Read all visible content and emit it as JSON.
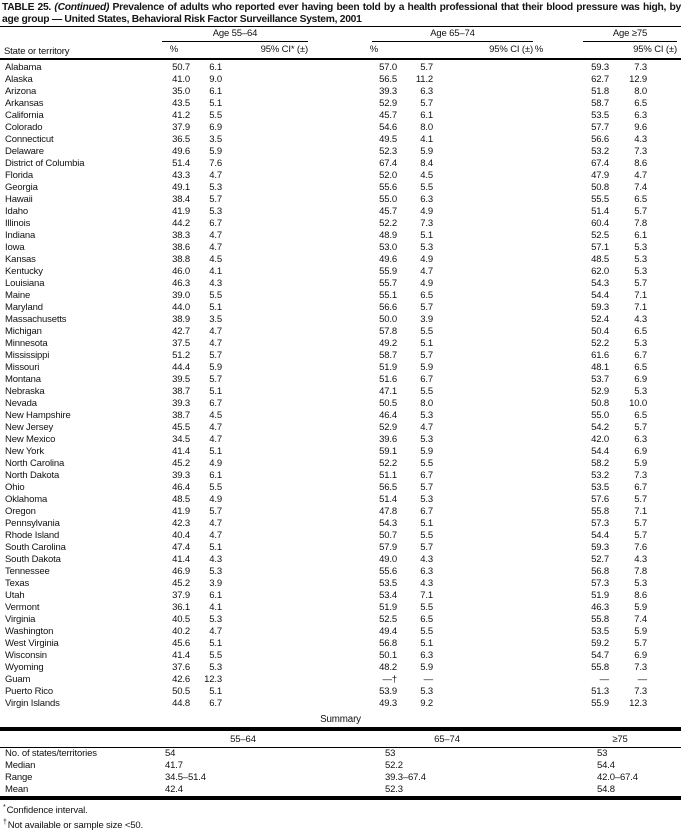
{
  "title": {
    "label": "TABLE 25.",
    "continued": "(Continued)",
    "text": "Prevalence of adults who reported ever having been told by a health professional that their blood pressure was high, by age group — United States, Behavioral Risk Factor Surveillance System, 2001"
  },
  "header": {
    "row_header": "State or territory",
    "groups": [
      {
        "label": "Age 55–64",
        "pct": "%",
        "ci": "95% CI* (±)"
      },
      {
        "label": "Age 65–74",
        "pct": "%",
        "ci": "95% CI (±)"
      },
      {
        "label": "Age ≥75",
        "pct": "%",
        "ci": "95% CI (±)"
      }
    ]
  },
  "rows": [
    {
      "state": "Alabama",
      "v": [
        "50.7",
        "6.1",
        "57.0",
        "5.7",
        "59.3",
        "7.3"
      ]
    },
    {
      "state": "Alaska",
      "v": [
        "41.0",
        "9.0",
        "56.5",
        "11.2",
        "62.7",
        "12.9"
      ]
    },
    {
      "state": "Arizona",
      "v": [
        "35.0",
        "6.1",
        "39.3",
        "6.3",
        "51.8",
        "8.0"
      ]
    },
    {
      "state": "Arkansas",
      "v": [
        "43.5",
        "5.1",
        "52.9",
        "5.7",
        "58.7",
        "6.5"
      ]
    },
    {
      "state": "California",
      "v": [
        "41.2",
        "5.5",
        "45.7",
        "6.1",
        "53.5",
        "6.3"
      ]
    },
    {
      "state": "Colorado",
      "v": [
        "37.9",
        "6.9",
        "54.6",
        "8.0",
        "57.7",
        "9.6"
      ]
    },
    {
      "state": "Connecticut",
      "v": [
        "36.5",
        "3.5",
        "49.5",
        "4.1",
        "56.6",
        "4.3"
      ]
    },
    {
      "state": "Delaware",
      "v": [
        "49.6",
        "5.9",
        "52.3",
        "5.9",
        "53.2",
        "7.3"
      ]
    },
    {
      "state": "District of Columbia",
      "v": [
        "51.4",
        "7.6",
        "67.4",
        "8.4",
        "67.4",
        "8.6"
      ]
    },
    {
      "state": "Florida",
      "v": [
        "43.3",
        "4.7",
        "52.0",
        "4.5",
        "47.9",
        "4.7"
      ]
    },
    {
      "state": "Georgia",
      "v": [
        "49.1",
        "5.3",
        "55.6",
        "5.5",
        "50.8",
        "7.4"
      ]
    },
    {
      "state": "Hawaii",
      "v": [
        "38.4",
        "5.7",
        "55.0",
        "6.3",
        "55.5",
        "6.5"
      ]
    },
    {
      "state": "Idaho",
      "v": [
        "41.9",
        "5.3",
        "45.7",
        "4.9",
        "51.4",
        "5.7"
      ]
    },
    {
      "state": "Illinois",
      "v": [
        "44.2",
        "6.7",
        "52.2",
        "7.3",
        "60.4",
        "7.8"
      ]
    },
    {
      "state": "Indiana",
      "v": [
        "38.3",
        "4.7",
        "48.9",
        "5.1",
        "52.5",
        "6.1"
      ]
    },
    {
      "state": "Iowa",
      "v": [
        "38.6",
        "4.7",
        "53.0",
        "5.3",
        "57.1",
        "5.3"
      ]
    },
    {
      "state": "Kansas",
      "v": [
        "38.8",
        "4.5",
        "49.6",
        "4.9",
        "48.5",
        "5.3"
      ]
    },
    {
      "state": "Kentucky",
      "v": [
        "46.0",
        "4.1",
        "55.9",
        "4.7",
        "62.0",
        "5.3"
      ]
    },
    {
      "state": "Louisiana",
      "v": [
        "46.3",
        "4.3",
        "55.7",
        "4.9",
        "54.3",
        "5.7"
      ]
    },
    {
      "state": "Maine",
      "v": [
        "39.0",
        "5.5",
        "55.1",
        "6.5",
        "54.4",
        "7.1"
      ]
    },
    {
      "state": "Maryland",
      "v": [
        "44.0",
        "5.1",
        "56.6",
        "5.7",
        "59.3",
        "7.1"
      ]
    },
    {
      "state": "Massachusetts",
      "v": [
        "38.9",
        "3.5",
        "50.0",
        "3.9",
        "52.4",
        "4.3"
      ]
    },
    {
      "state": "Michigan",
      "v": [
        "42.7",
        "4.7",
        "57.8",
        "5.5",
        "50.4",
        "6.5"
      ]
    },
    {
      "state": "Minnesota",
      "v": [
        "37.5",
        "4.7",
        "49.2",
        "5.1",
        "52.2",
        "5.3"
      ]
    },
    {
      "state": "Mississippi",
      "v": [
        "51.2",
        "5.7",
        "58.7",
        "5.7",
        "61.6",
        "6.7"
      ]
    },
    {
      "state": "Missouri",
      "v": [
        "44.4",
        "5.9",
        "51.9",
        "5.9",
        "48.1",
        "6.5"
      ]
    },
    {
      "state": "Montana",
      "v": [
        "39.5",
        "5.7",
        "51.6",
        "6.7",
        "53.7",
        "6.9"
      ]
    },
    {
      "state": "Nebraska",
      "v": [
        "38.7",
        "5.1",
        "47.1",
        "5.5",
        "52.9",
        "5.3"
      ]
    },
    {
      "state": "Nevada",
      "v": [
        "39.3",
        "6.7",
        "50.5",
        "8.0",
        "50.8",
        "10.0"
      ]
    },
    {
      "state": "New Hampshire",
      "v": [
        "38.7",
        "4.5",
        "46.4",
        "5.3",
        "55.0",
        "6.5"
      ]
    },
    {
      "state": "New Jersey",
      "v": [
        "45.5",
        "4.7",
        "52.9",
        "4.7",
        "54.2",
        "5.7"
      ]
    },
    {
      "state": "New Mexico",
      "v": [
        "34.5",
        "4.7",
        "39.6",
        "5.3",
        "42.0",
        "6.3"
      ]
    },
    {
      "state": "New York",
      "v": [
        "41.4",
        "5.1",
        "59.1",
        "5.9",
        "54.4",
        "6.9"
      ]
    },
    {
      "state": "North Carolina",
      "v": [
        "45.2",
        "4.9",
        "52.2",
        "5.5",
        "58.2",
        "5.9"
      ]
    },
    {
      "state": "North Dakota",
      "v": [
        "39.3",
        "6.1",
        "51.1",
        "6.7",
        "53.2",
        "7.3"
      ]
    },
    {
      "state": "Ohio",
      "v": [
        "46.4",
        "5.5",
        "56.5",
        "5.7",
        "53.5",
        "6.7"
      ]
    },
    {
      "state": "Oklahoma",
      "v": [
        "48.5",
        "4.9",
        "51.4",
        "5.3",
        "57.6",
        "5.7"
      ]
    },
    {
      "state": "Oregon",
      "v": [
        "41.9",
        "5.7",
        "47.8",
        "6.7",
        "55.8",
        "7.1"
      ]
    },
    {
      "state": "Pennsylvania",
      "v": [
        "42.3",
        "4.7",
        "54.3",
        "5.1",
        "57.3",
        "5.7"
      ]
    },
    {
      "state": "Rhode Island",
      "v": [
        "40.4",
        "4.7",
        "50.7",
        "5.5",
        "54.4",
        "5.7"
      ]
    },
    {
      "state": "South Carolina",
      "v": [
        "47.4",
        "5.1",
        "57.9",
        "5.7",
        "59.3",
        "7.6"
      ]
    },
    {
      "state": "South Dakota",
      "v": [
        "41.4",
        "4.3",
        "49.0",
        "4.3",
        "52.7",
        "4.3"
      ]
    },
    {
      "state": "Tennessee",
      "v": [
        "46.9",
        "5.3",
        "55.6",
        "6.3",
        "56.8",
        "7.8"
      ]
    },
    {
      "state": "Texas",
      "v": [
        "45.2",
        "3.9",
        "53.5",
        "4.3",
        "57.3",
        "5.3"
      ]
    },
    {
      "state": "Utah",
      "v": [
        "37.9",
        "6.1",
        "53.4",
        "7.1",
        "51.9",
        "8.6"
      ]
    },
    {
      "state": "Vermont",
      "v": [
        "36.1",
        "4.1",
        "51.9",
        "5.5",
        "46.3",
        "5.9"
      ]
    },
    {
      "state": "Virginia",
      "v": [
        "40.5",
        "5.3",
        "52.5",
        "6.5",
        "55.8",
        "7.4"
      ]
    },
    {
      "state": "Washington",
      "v": [
        "40.2",
        "4.7",
        "49.4",
        "5.5",
        "53.5",
        "5.9"
      ]
    },
    {
      "state": "West Virginia",
      "v": [
        "45.6",
        "5.1",
        "56.8",
        "5.1",
        "59.2",
        "5.7"
      ]
    },
    {
      "state": "Wisconsin",
      "v": [
        "41.4",
        "5.5",
        "50.1",
        "6.3",
        "54.7",
        "6.9"
      ]
    },
    {
      "state": "Wyoming",
      "v": [
        "37.6",
        "5.3",
        "48.2",
        "5.9",
        "55.8",
        "7.3"
      ]
    },
    {
      "state": "Guam",
      "v": [
        "42.6",
        "12.3",
        "—†",
        "—",
        "—",
        "—"
      ]
    },
    {
      "state": "Puerto Rico",
      "v": [
        "50.5",
        "5.1",
        "53.9",
        "5.3",
        "51.3",
        "7.3"
      ]
    },
    {
      "state": "Virgin Islands",
      "v": [
        "44.8",
        "6.7",
        "49.3",
        "9.2",
        "55.9",
        "12.3"
      ]
    }
  ],
  "summary": {
    "title": "Summary",
    "columns": [
      "55–64",
      "65–74",
      "≥75"
    ],
    "rows": [
      {
        "label": "No. of states/territories",
        "v": [
          "54",
          "53",
          "53"
        ]
      },
      {
        "label": "Median",
        "v": [
          "41.7",
          "52.2",
          "54.4"
        ]
      },
      {
        "label": "Range",
        "v": [
          "34.5–51.4",
          "39.3–67.4",
          "42.0–67.4"
        ]
      },
      {
        "label": "Mean",
        "v": [
          "42.4",
          "52.3",
          "54.8"
        ]
      }
    ]
  },
  "footnotes": [
    {
      "marker": "*",
      "text": "Confidence interval."
    },
    {
      "marker": "†",
      "text": "Not available or sample size <50."
    }
  ]
}
